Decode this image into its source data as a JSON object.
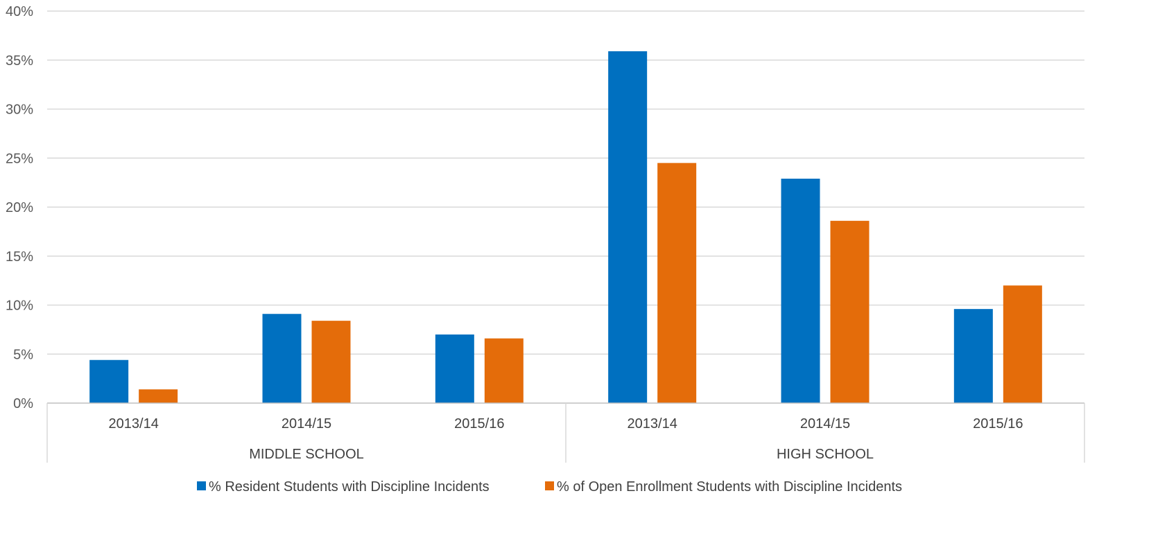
{
  "chart_data": {
    "type": "bar",
    "y_axis": {
      "min": 0,
      "max": 40,
      "step": 5,
      "tick_labels": [
        "0%",
        "5%",
        "10%",
        "15%",
        "20%",
        "25%",
        "30%",
        "35%",
        "40%"
      ]
    },
    "grid": true,
    "groups": [
      {
        "label": "MIDDLE SCHOOL",
        "categories": [
          "2013/14",
          "2014/15",
          "2015/16"
        ]
      },
      {
        "label": "HIGH SCHOOL",
        "categories": [
          "2013/14",
          "2014/15",
          "2015/16"
        ]
      }
    ],
    "series": [
      {
        "name": "% Resident Students with  Discipline Incidents",
        "color": "#0070C0",
        "values": [
          4.4,
          9.1,
          7.0,
          35.9,
          22.9,
          9.6
        ]
      },
      {
        "name": "% of Open Enrollment Students with Discipline Incidents",
        "color": "#E46C0A",
        "values": [
          1.4,
          8.4,
          6.6,
          24.5,
          18.6,
          12.0
        ]
      }
    ],
    "legend_position": "bottom"
  }
}
